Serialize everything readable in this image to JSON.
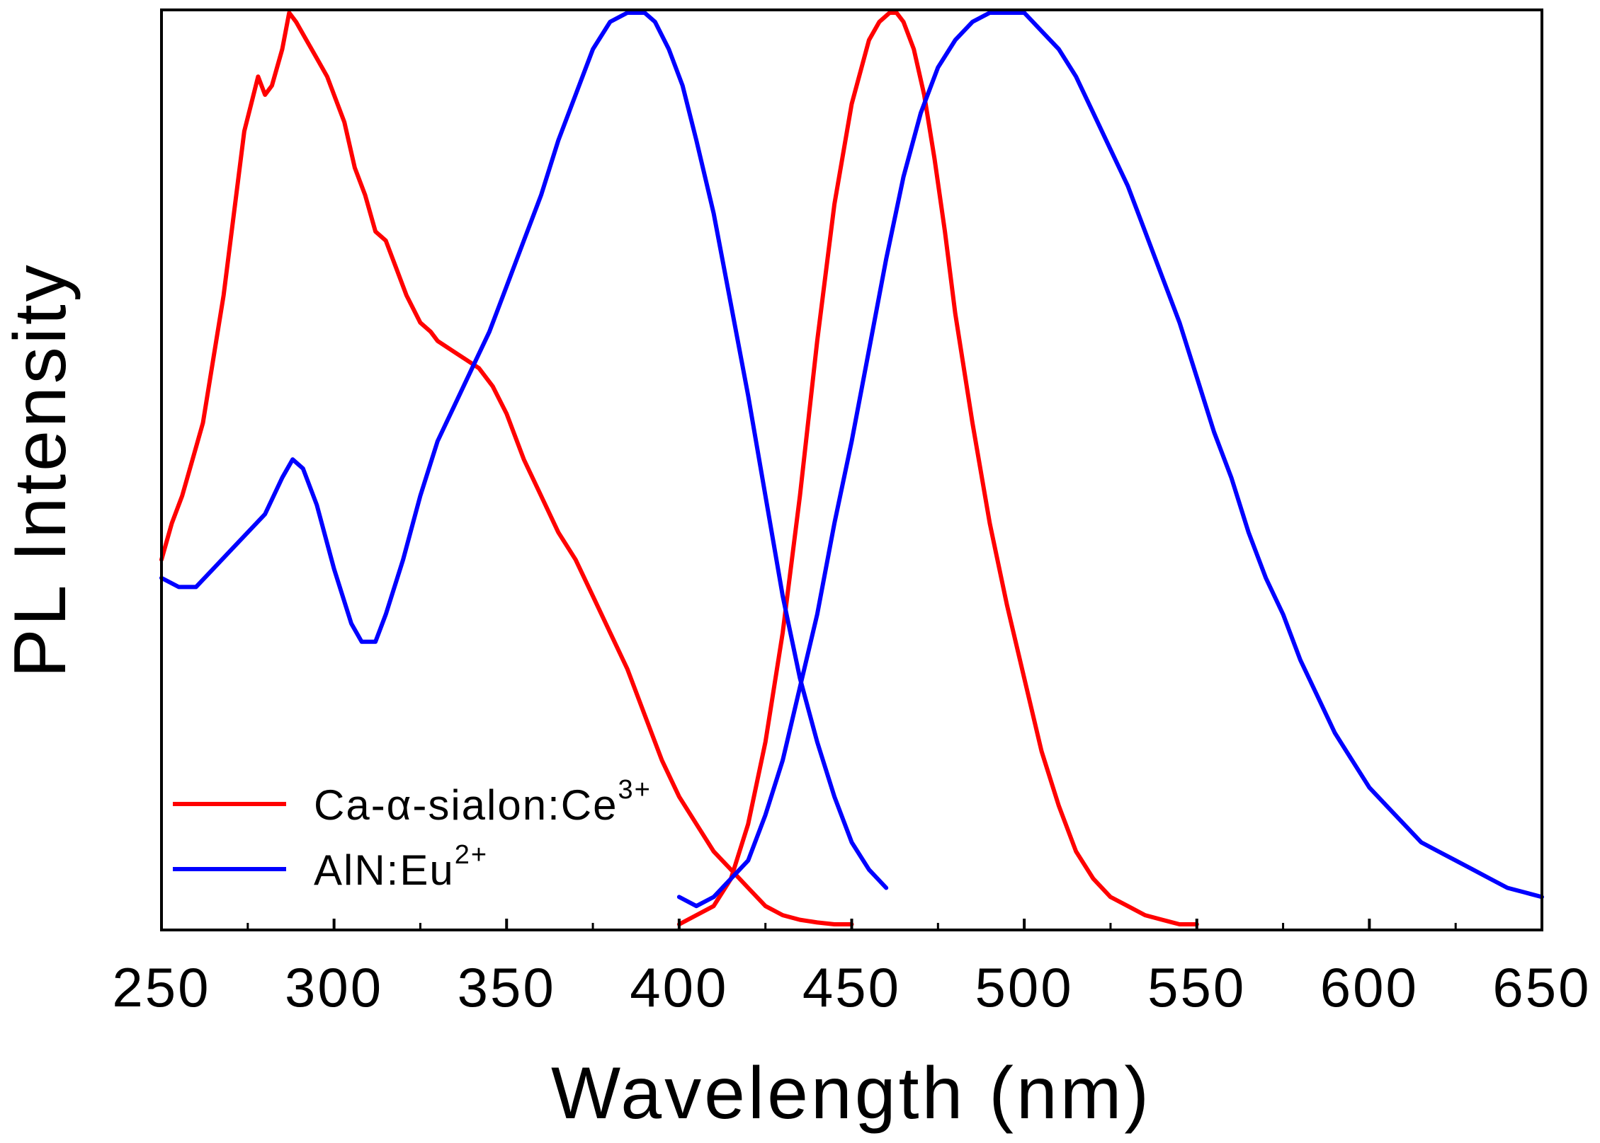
{
  "chart_data": {
    "type": "line",
    "title": "",
    "xlabel": "Wavelength (nm)",
    "ylabel": "PL Intensity",
    "xlim": [
      250,
      650
    ],
    "ylim": [
      0,
      1
    ],
    "x_ticks": [
      250,
      300,
      350,
      400,
      450,
      500,
      550,
      600,
      650
    ],
    "x_tick_labels": [
      "250",
      "300",
      "350",
      "400",
      "450",
      "500",
      "550",
      "600",
      "650"
    ],
    "y_ticks_shown": false,
    "grid": false,
    "legend": {
      "placement": "bottom-left",
      "entries": [
        {
          "base": "Ca-α-sialon:Ce",
          "sup": "3+",
          "color": "#ff0000"
        },
        {
          "base": "AlN:Eu",
          "sup": "2+",
          "color": "#0000ff"
        }
      ]
    },
    "series": [
      {
        "name": "Ca-α-sialon:Ce3+ excitation",
        "color": "#ff0000",
        "x": [
          250,
          253,
          256,
          259,
          262,
          265,
          268,
          271,
          274,
          276,
          278,
          280,
          282,
          285,
          287,
          289,
          292,
          295,
          298,
          300,
          303,
          306,
          309,
          312,
          315,
          318,
          321,
          325,
          328,
          330,
          334,
          338,
          342,
          346,
          350,
          355,
          360,
          365,
          370,
          375,
          380,
          385,
          390,
          395,
          400,
          405,
          410,
          415,
          420,
          425,
          430,
          435,
          440,
          445,
          450
        ],
        "y": [
          0.4,
          0.44,
          0.47,
          0.51,
          0.55,
          0.62,
          0.69,
          0.78,
          0.87,
          0.9,
          0.93,
          0.91,
          0.92,
          0.96,
          1.0,
          0.99,
          0.97,
          0.95,
          0.93,
          0.91,
          0.88,
          0.83,
          0.8,
          0.76,
          0.75,
          0.72,
          0.69,
          0.66,
          0.65,
          0.64,
          0.63,
          0.62,
          0.61,
          0.59,
          0.56,
          0.51,
          0.47,
          0.43,
          0.4,
          0.36,
          0.32,
          0.28,
          0.23,
          0.18,
          0.14,
          0.11,
          0.08,
          0.06,
          0.04,
          0.02,
          0.01,
          0.005,
          0.002,
          0.0,
          0.0
        ]
      },
      {
        "name": "Ca-α-sialon:Ce3+ emission",
        "color": "#ff0000",
        "x": [
          400,
          405,
          410,
          415,
          420,
          425,
          430,
          435,
          440,
          445,
          450,
          455,
          458,
          461,
          463,
          465,
          468,
          471,
          474,
          477,
          480,
          485,
          490,
          495,
          500,
          505,
          510,
          515,
          520,
          525,
          530,
          535,
          540,
          545,
          550
        ],
        "y": [
          0.0,
          0.01,
          0.02,
          0.05,
          0.11,
          0.2,
          0.32,
          0.47,
          0.64,
          0.79,
          0.9,
          0.97,
          0.99,
          1.0,
          1.0,
          0.99,
          0.96,
          0.91,
          0.84,
          0.76,
          0.67,
          0.55,
          0.44,
          0.35,
          0.27,
          0.19,
          0.13,
          0.08,
          0.05,
          0.03,
          0.02,
          0.01,
          0.005,
          0.0,
          0.0
        ]
      },
      {
        "name": "AlN:Eu2+ excitation",
        "color": "#0000ff",
        "x": [
          250,
          255,
          260,
          265,
          270,
          275,
          280,
          285,
          288,
          291,
          295,
          300,
          305,
          308,
          312,
          315,
          320,
          325,
          330,
          335,
          340,
          345,
          350,
          355,
          360,
          365,
          370,
          375,
          380,
          385,
          388,
          390,
          393,
          397,
          401,
          405,
          410,
          415,
          420,
          425,
          430,
          435,
          440,
          445,
          450,
          455,
          460
        ],
        "y": [
          0.38,
          0.37,
          0.37,
          0.39,
          0.41,
          0.43,
          0.45,
          0.49,
          0.51,
          0.5,
          0.46,
          0.39,
          0.33,
          0.31,
          0.31,
          0.34,
          0.4,
          0.47,
          0.53,
          0.57,
          0.61,
          0.65,
          0.7,
          0.75,
          0.8,
          0.86,
          0.91,
          0.96,
          0.99,
          1.0,
          1.0,
          1.0,
          0.99,
          0.96,
          0.92,
          0.86,
          0.78,
          0.68,
          0.58,
          0.47,
          0.36,
          0.27,
          0.2,
          0.14,
          0.09,
          0.06,
          0.04
        ]
      },
      {
        "name": "AlN:Eu2+ emission",
        "color": "#0000ff",
        "x": [
          400,
          405,
          410,
          415,
          420,
          425,
          430,
          435,
          440,
          445,
          450,
          455,
          460,
          465,
          470,
          475,
          480,
          485,
          490,
          495,
          500,
          505,
          510,
          515,
          520,
          525,
          530,
          535,
          540,
          545,
          550,
          555,
          560,
          565,
          570,
          575,
          580,
          585,
          590,
          595,
          600,
          605,
          610,
          615,
          620,
          625,
          630,
          635,
          640,
          645,
          650
        ],
        "y": [
          0.03,
          0.02,
          0.03,
          0.05,
          0.07,
          0.12,
          0.18,
          0.26,
          0.34,
          0.44,
          0.53,
          0.63,
          0.73,
          0.82,
          0.89,
          0.94,
          0.97,
          0.99,
          1.0,
          1.0,
          1.0,
          0.98,
          0.96,
          0.93,
          0.89,
          0.85,
          0.81,
          0.76,
          0.71,
          0.66,
          0.6,
          0.54,
          0.49,
          0.43,
          0.38,
          0.34,
          0.29,
          0.25,
          0.21,
          0.18,
          0.15,
          0.13,
          0.11,
          0.09,
          0.08,
          0.07,
          0.06,
          0.05,
          0.04,
          0.035,
          0.03
        ]
      }
    ]
  }
}
